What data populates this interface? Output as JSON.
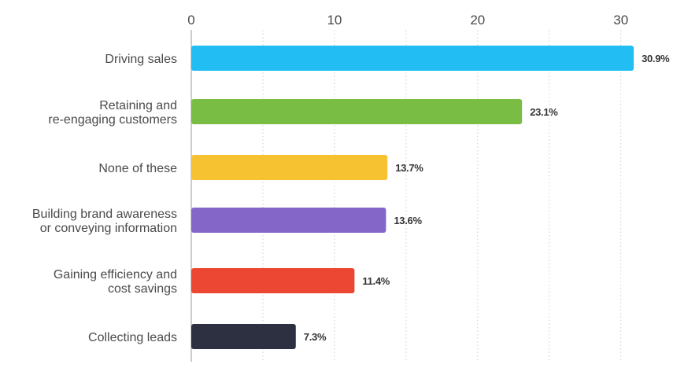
{
  "chart_data": {
    "type": "bar",
    "orientation": "horizontal",
    "title": "",
    "xlabel": "",
    "ylabel": "",
    "xlim": [
      0,
      31
    ],
    "ticks": [
      0,
      10,
      20,
      30
    ],
    "grid": true,
    "categories": [
      "Driving sales",
      "Retaining and\nre-engaging customers",
      "None of these",
      "Building brand awareness\nor conveying information",
      "Gaining efficiency and\ncost savings",
      "Collecting leads"
    ],
    "values": [
      30.9,
      23.1,
      13.7,
      13.6,
      11.4,
      7.3
    ],
    "value_labels": [
      "30.9%",
      "23.1%",
      "13.7%",
      "13.6%",
      "11.4%",
      "7.3%"
    ],
    "colors": [
      "#22bdf2",
      "#79bd45",
      "#f6c232",
      "#8466c9",
      "#eb4733",
      "#2c3040"
    ],
    "grid_color": "#cfcfcf",
    "axis_color": "#cccccc"
  }
}
